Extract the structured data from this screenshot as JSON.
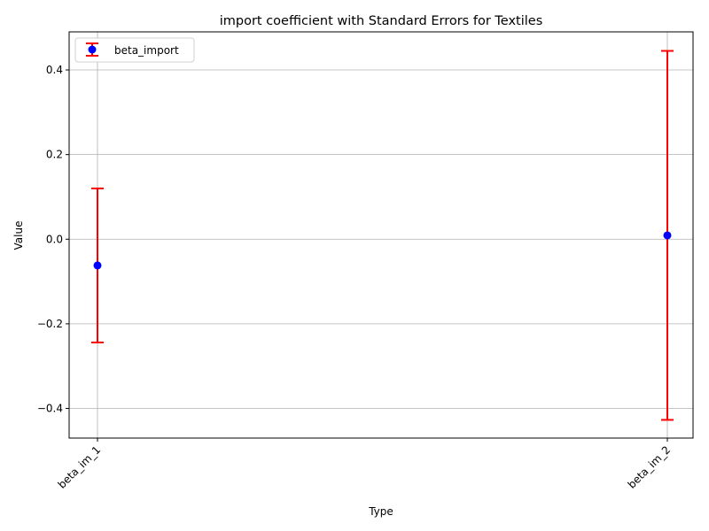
{
  "chart_data": {
    "type": "errorbar",
    "title": "import coefficient with Standard Errors for Textiles",
    "xlabel": "Type",
    "ylabel": "Value",
    "categories": [
      "beta_im_1",
      "beta_im_2"
    ],
    "series": [
      {
        "name": "beta_import",
        "values": [
          -0.062,
          0.009
        ],
        "errors": [
          0.182,
          0.436
        ]
      }
    ],
    "ylim": [
      -0.47,
      0.49
    ],
    "yticks": [
      -0.4,
      -0.2,
      0.0,
      0.2,
      0.4
    ],
    "ytick_labels": [
      "−0.4",
      "−0.2",
      "0.0",
      "0.2",
      "0.4"
    ],
    "grid": true,
    "legend_position": "top-left",
    "colors": {
      "marker": "#0000ff",
      "errorbar": "#ff0000",
      "grid": "#b0b0b0",
      "axis": "#000000"
    }
  }
}
